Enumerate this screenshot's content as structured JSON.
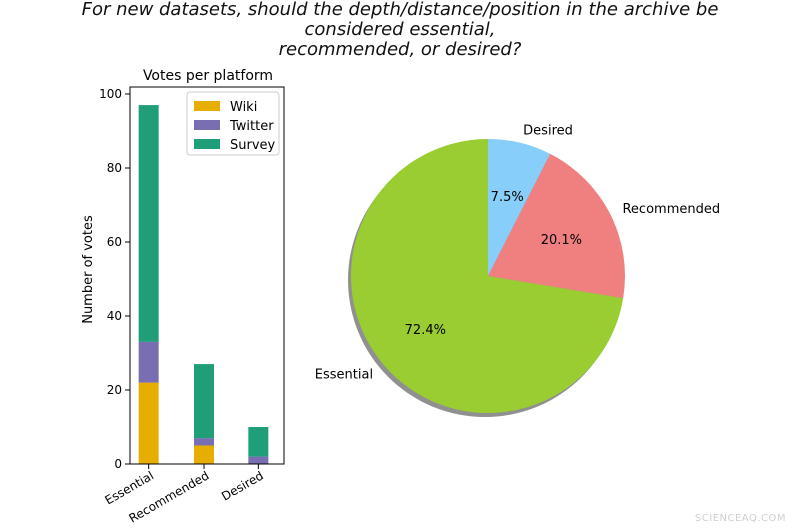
{
  "title_lines": [
    "For new datasets, should the depth/distance/position in the archive be",
    "considered essential,",
    "recommended, or desired?"
  ],
  "watermark": "SCIENCEAQ.COM",
  "colors": {
    "wiki": "#e5ae00",
    "twitter": "#7a6eb2",
    "survey": "#1f9e79",
    "essential": "#9acd32",
    "recommended": "#f08080",
    "desired": "#87cefa"
  },
  "chart_data": [
    {
      "type": "bar",
      "stacked": true,
      "title": "Votes per platform",
      "xlabel": "",
      "ylabel": "Number of votes",
      "categories": [
        "Essential",
        "Recommended",
        "Desired"
      ],
      "series": [
        {
          "name": "Wiki",
          "values": [
            22,
            5,
            0
          ],
          "color_key": "wiki"
        },
        {
          "name": "Twitter",
          "values": [
            11,
            2,
            2
          ],
          "color_key": "twitter"
        },
        {
          "name": "Survey",
          "values": [
            64,
            20,
            8
          ],
          "color_key": "survey"
        }
      ],
      "ylim": [
        0,
        100
      ],
      "yticks": [
        0,
        20,
        40,
        60,
        80,
        100
      ],
      "legend": "top-right",
      "grid": false
    },
    {
      "type": "pie",
      "labels": [
        "Desired",
        "Recommended",
        "Essential"
      ],
      "values": [
        7.5,
        20.1,
        72.4
      ],
      "value_labels": [
        "7.5%",
        "20.1%",
        "72.4%"
      ],
      "color_keys": [
        "desired",
        "recommended",
        "essential"
      ],
      "start": "top",
      "direction": "clockwise",
      "shadow": true
    }
  ]
}
